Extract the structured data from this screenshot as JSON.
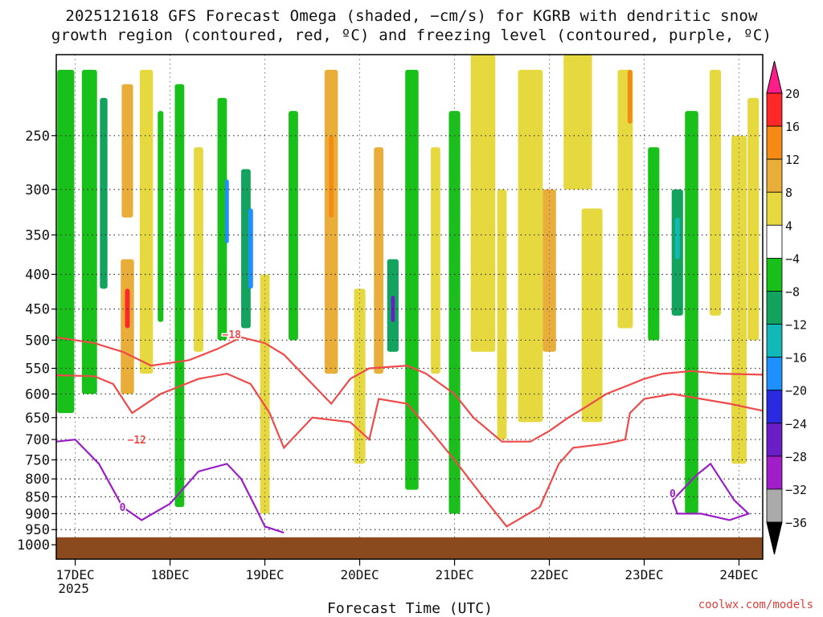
{
  "title_line1": "2025121618 GFS Forecast Omega (shaded, −cm/s) for KGRB with dendritic snow",
  "title_line2": "growth region (contoured, red, ºC) and freezing level (contoured, purple, ºC)",
  "credit": "coolwx.com/models",
  "chart_data": {
    "type": "heatmap",
    "title": "2025121618 GFS Forecast Omega (shaded, −cm/s) for KGRB with dendritic snow growth region (contoured, red, ºC) and freezing level (contoured, purple, ºC)",
    "xlabel": "Forecast Time (UTC)",
    "ylabel": "",
    "x_ticks": [
      {
        "label": "17DEC",
        "sub": "2025",
        "day": 17
      },
      {
        "label": "18DEC",
        "sub": "",
        "day": 18
      },
      {
        "label": "19DEC",
        "sub": "",
        "day": 19
      },
      {
        "label": "20DEC",
        "sub": "",
        "day": 20
      },
      {
        "label": "21DEC",
        "sub": "",
        "day": 21
      },
      {
        "label": "22DEC",
        "sub": "",
        "day": 22
      },
      {
        "label": "23DEC",
        "sub": "",
        "day": 23
      },
      {
        "label": "24DEC",
        "sub": "",
        "day": 24
      }
    ],
    "xlim": [
      16.8,
      24.25
    ],
    "y_ticks": [
      250,
      300,
      350,
      400,
      450,
      500,
      550,
      600,
      650,
      700,
      750,
      800,
      850,
      900,
      950,
      1000
    ],
    "ylim": [
      1050,
      190
    ],
    "y_scale": "log",
    "y_reversed": true,
    "grid": true,
    "colorbar": {
      "levels": [
        20,
        16,
        12,
        8,
        4,
        -4,
        -8,
        -12,
        -16,
        -20,
        -24,
        -28,
        -32,
        -36
      ],
      "labels": [
        "20",
        "16",
        "12",
        "8",
        "4",
        "−4",
        "−8",
        "−12",
        "−16",
        "−20",
        "−24",
        "−28",
        "−32",
        "−36"
      ],
      "colors": [
        "#ff1d8a",
        "#ff2828",
        "#f58a14",
        "#e9ae3a",
        "#e6d940",
        "#ffffff",
        "#19c019",
        "#13a35e",
        "#12b8b8",
        "#1e90ff",
        "#2a2ae0",
        "#6a1ec8",
        "#a01ec8",
        "#aaaaaa",
        "#000000"
      ]
    },
    "omega_cells": [
      {
        "t": 16.9,
        "p0": 200,
        "p1": 640,
        "w": 0.18,
        "v": -8
      },
      {
        "t": 17.15,
        "p0": 200,
        "p1": 600,
        "w": 0.16,
        "v": -8
      },
      {
        "t": 17.3,
        "p0": 220,
        "p1": 420,
        "w": 0.08,
        "v": -12
      },
      {
        "t": 17.55,
        "p0": 210,
        "p1": 330,
        "w": 0.12,
        "v": 8
      },
      {
        "t": 17.55,
        "p0": 380,
        "p1": 600,
        "w": 0.14,
        "v": 8
      },
      {
        "t": 17.55,
        "p0": 420,
        "p1": 480,
        "w": 0.05,
        "v": 16
      },
      {
        "t": 17.75,
        "p0": 200,
        "p1": 560,
        "w": 0.14,
        "v": 4
      },
      {
        "t": 17.9,
        "p0": 230,
        "p1": 470,
        "w": 0.06,
        "v": -8
      },
      {
        "t": 18.1,
        "p0": 210,
        "p1": 880,
        "w": 0.1,
        "v": -8
      },
      {
        "t": 18.3,
        "p0": 260,
        "p1": 520,
        "w": 0.1,
        "v": 4
      },
      {
        "t": 18.55,
        "p0": 220,
        "p1": 500,
        "w": 0.1,
        "v": -8
      },
      {
        "t": 18.6,
        "p0": 290,
        "p1": 360,
        "w": 0.04,
        "v": -20
      },
      {
        "t": 18.8,
        "p0": 280,
        "p1": 480,
        "w": 0.1,
        "v": -12
      },
      {
        "t": 18.85,
        "p0": 320,
        "p1": 420,
        "w": 0.05,
        "v": -20
      },
      {
        "t": 19.0,
        "p0": 400,
        "p1": 900,
        "w": 0.1,
        "v": 4
      },
      {
        "t": 19.3,
        "p0": 230,
        "p1": 500,
        "w": 0.1,
        "v": -8
      },
      {
        "t": 19.7,
        "p0": 200,
        "p1": 560,
        "w": 0.14,
        "v": 8
      },
      {
        "t": 19.7,
        "p0": 250,
        "p1": 330,
        "w": 0.05,
        "v": 12
      },
      {
        "t": 20.0,
        "p0": 420,
        "p1": 760,
        "w": 0.12,
        "v": 4
      },
      {
        "t": 20.2,
        "p0": 260,
        "p1": 560,
        "w": 0.1,
        "v": 8
      },
      {
        "t": 20.35,
        "p0": 380,
        "p1": 520,
        "w": 0.12,
        "v": -12
      },
      {
        "t": 20.35,
        "p0": 430,
        "p1": 470,
        "w": 0.04,
        "v": -28
      },
      {
        "t": 20.55,
        "p0": 200,
        "p1": 830,
        "w": 0.14,
        "v": -8
      },
      {
        "t": 20.8,
        "p0": 260,
        "p1": 560,
        "w": 0.1,
        "v": 4
      },
      {
        "t": 21.0,
        "p0": 230,
        "p1": 900,
        "w": 0.12,
        "v": -8
      },
      {
        "t": 21.3,
        "p0": 190,
        "p1": 520,
        "w": 0.26,
        "v": 4
      },
      {
        "t": 21.5,
        "p0": 300,
        "p1": 700,
        "w": 0.1,
        "v": 4
      },
      {
        "t": 21.8,
        "p0": 200,
        "p1": 660,
        "w": 0.26,
        "v": 4
      },
      {
        "t": 22.0,
        "p0": 300,
        "p1": 520,
        "w": 0.14,
        "v": 8
      },
      {
        "t": 22.3,
        "p0": 190,
        "p1": 300,
        "w": 0.3,
        "v": 4
      },
      {
        "t": 22.45,
        "p0": 320,
        "p1": 660,
        "w": 0.22,
        "v": 4
      },
      {
        "t": 22.8,
        "p0": 200,
        "p1": 480,
        "w": 0.16,
        "v": 4
      },
      {
        "t": 22.85,
        "p0": 200,
        "p1": 240,
        "w": 0.05,
        "v": 12
      },
      {
        "t": 23.1,
        "p0": 260,
        "p1": 500,
        "w": 0.12,
        "v": -8
      },
      {
        "t": 23.35,
        "p0": 300,
        "p1": 460,
        "w": 0.12,
        "v": -12
      },
      {
        "t": 23.35,
        "p0": 330,
        "p1": 380,
        "w": 0.05,
        "v": -16
      },
      {
        "t": 23.5,
        "p0": 230,
        "p1": 900,
        "w": 0.14,
        "v": -8
      },
      {
        "t": 23.75,
        "p0": 200,
        "p1": 460,
        "w": 0.12,
        "v": 4
      },
      {
        "t": 24.0,
        "p0": 250,
        "p1": 760,
        "w": 0.16,
        "v": 4
      },
      {
        "t": 24.15,
        "p0": 220,
        "p1": 500,
        "w": 0.12,
        "v": 4
      }
    ],
    "dgz_contours": [
      {
        "label": "−18",
        "label_at": [
          18.65,
          490
        ],
        "points": [
          [
            16.8,
            495
          ],
          [
            17.2,
            505
          ],
          [
            17.5,
            520
          ],
          [
            17.8,
            545
          ],
          [
            18.2,
            535
          ],
          [
            18.5,
            515
          ],
          [
            18.75,
            495
          ],
          [
            19.0,
            505
          ],
          [
            19.2,
            525
          ],
          [
            19.5,
            580
          ],
          [
            19.7,
            620
          ],
          [
            19.9,
            570
          ],
          [
            20.1,
            550
          ],
          [
            20.5,
            545
          ],
          [
            20.7,
            560
          ],
          [
            21.0,
            600
          ],
          [
            21.2,
            650
          ],
          [
            21.5,
            705
          ],
          [
            21.8,
            705
          ],
          [
            22.0,
            680
          ],
          [
            22.2,
            650
          ],
          [
            22.4,
            625
          ],
          [
            22.6,
            600
          ],
          [
            22.8,
            585
          ],
          [
            23.0,
            570
          ],
          [
            23.2,
            560
          ],
          [
            23.5,
            555
          ],
          [
            23.8,
            560
          ],
          [
            24.25,
            562
          ]
        ]
      },
      {
        "label": "−12",
        "label_at": [
          17.65,
          700
        ],
        "points": [
          [
            16.8,
            563
          ],
          [
            17.2,
            565
          ],
          [
            17.4,
            580
          ],
          [
            17.6,
            640
          ],
          [
            17.9,
            600
          ],
          [
            18.3,
            570
          ],
          [
            18.6,
            560
          ],
          [
            18.85,
            580
          ],
          [
            19.05,
            640
          ],
          [
            19.2,
            720
          ],
          [
            19.5,
            650
          ],
          [
            19.9,
            660
          ],
          [
            20.1,
            700
          ],
          [
            20.2,
            610
          ],
          [
            20.5,
            620
          ],
          [
            20.75,
            680
          ],
          [
            21.0,
            750
          ],
          [
            21.3,
            850
          ],
          [
            21.55,
            940
          ],
          [
            21.9,
            880
          ],
          [
            22.1,
            760
          ],
          [
            22.25,
            720
          ],
          [
            22.6,
            710
          ],
          [
            22.8,
            700
          ],
          [
            22.85,
            640
          ],
          [
            23.0,
            610
          ],
          [
            23.3,
            600
          ],
          [
            23.6,
            610
          ],
          [
            23.9,
            620
          ],
          [
            24.25,
            635
          ]
        ]
      }
    ],
    "freezing_contours": [
      {
        "label": "0",
        "label_at": [
          17.5,
          880
        ],
        "points": [
          [
            16.8,
            705
          ],
          [
            17.0,
            700
          ],
          [
            17.25,
            760
          ],
          [
            17.5,
            880
          ],
          [
            17.7,
            920
          ],
          [
            18.0,
            870
          ],
          [
            18.3,
            780
          ],
          [
            18.6,
            760
          ],
          [
            18.75,
            800
          ],
          [
            18.9,
            880
          ],
          [
            19.0,
            940
          ],
          [
            19.2,
            960
          ]
        ]
      },
      {
        "label": "0",
        "label_at": [
          23.3,
          840
        ],
        "points": [
          [
            23.3,
            860
          ],
          [
            23.55,
            790
          ],
          [
            23.7,
            760
          ],
          [
            23.95,
            860
          ],
          [
            24.1,
            900
          ],
          [
            23.9,
            920
          ],
          [
            23.6,
            900
          ],
          [
            23.35,
            900
          ],
          [
            23.3,
            860
          ]
        ]
      }
    ],
    "terrain": {
      "surface_pressure_hpa": 975
    }
  }
}
